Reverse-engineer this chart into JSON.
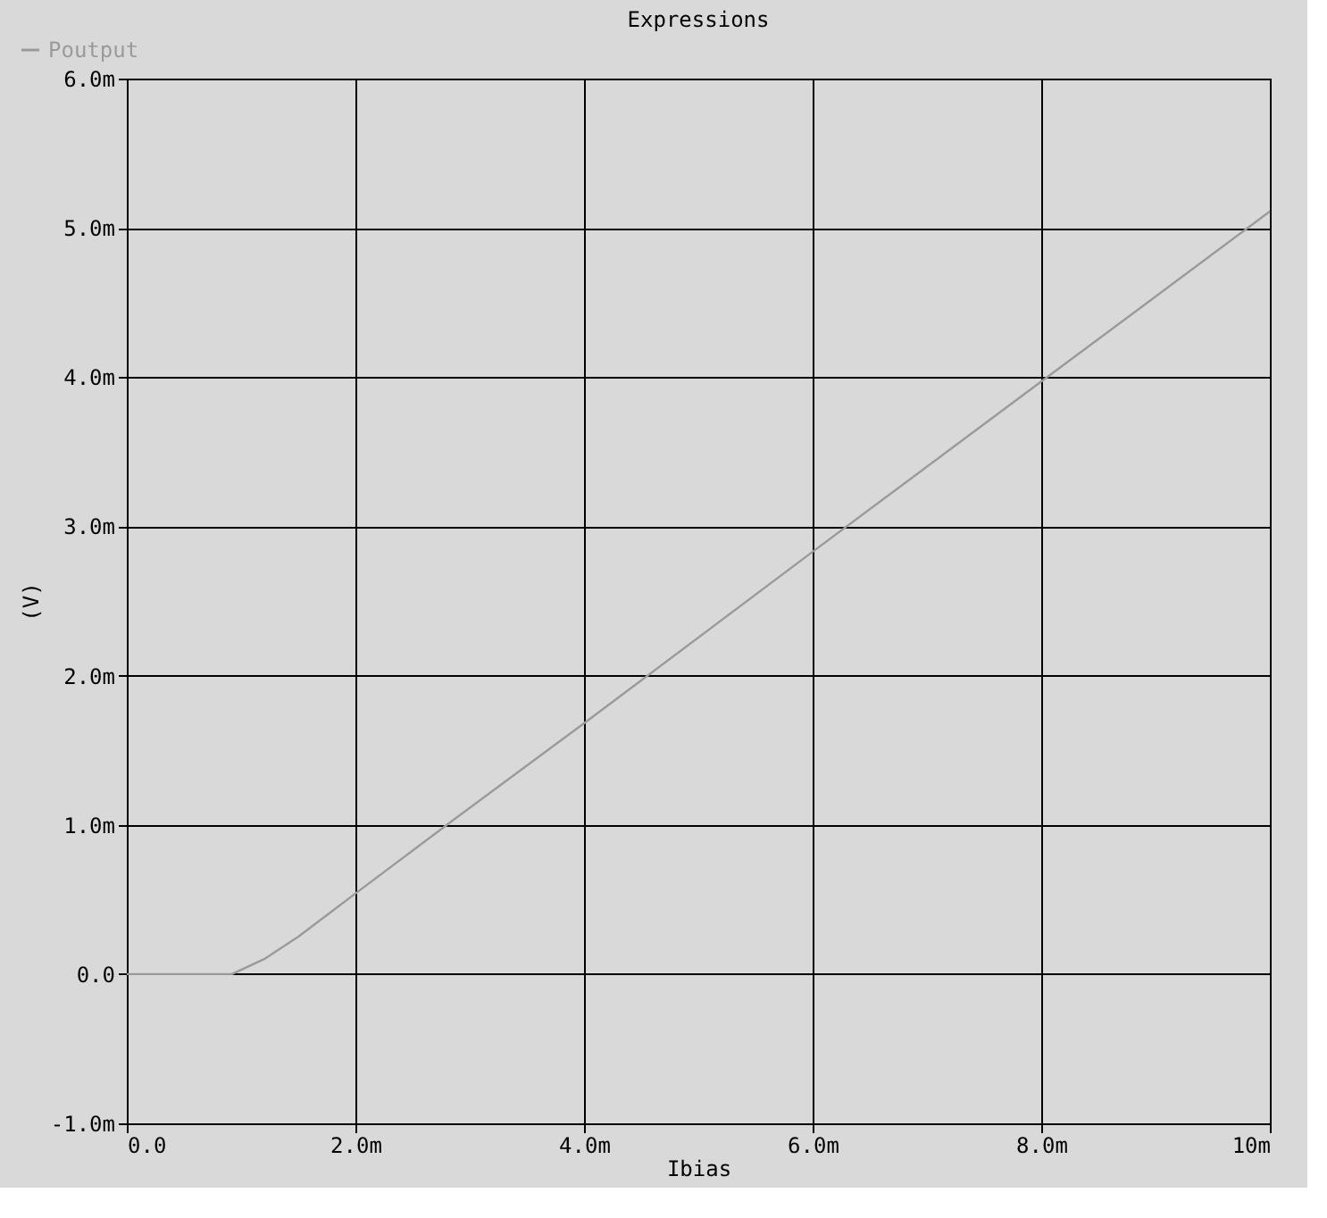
{
  "chart_data": {
    "type": "line",
    "title": "Expressions",
    "xlabel": "Ibias",
    "ylabel": "(V)",
    "x": [
      0,
      0.5,
      0.92,
      1.2,
      1.5,
      2.0,
      2.8,
      4.0,
      6.0,
      8.0,
      10.0
    ],
    "series": [
      {
        "name": "Poutput",
        "color": "#9a9a9a",
        "values": [
          0,
          0,
          0,
          0.1,
          0.25,
          0.54,
          1.0,
          1.68,
          2.83,
          3.97,
          5.11
        ]
      }
    ],
    "xlim": [
      0,
      10
    ],
    "ylim": [
      -1,
      6
    ],
    "xticks": [
      {
        "value": 0,
        "label": "0.0"
      },
      {
        "value": 2,
        "label": "2.0m"
      },
      {
        "value": 4,
        "label": "4.0m"
      },
      {
        "value": 6,
        "label": "6.0m"
      },
      {
        "value": 8,
        "label": "8.0m"
      },
      {
        "value": 10,
        "label": "10m"
      }
    ],
    "yticks": [
      {
        "value": -1,
        "label": "-1.0m"
      },
      {
        "value": 0,
        "label": "0.0"
      },
      {
        "value": 1,
        "label": "1.0m"
      },
      {
        "value": 2,
        "label": "2.0m"
      },
      {
        "value": 3,
        "label": "3.0m"
      },
      {
        "value": 4,
        "label": "4.0m"
      },
      {
        "value": 5,
        "label": "5.0m"
      },
      {
        "value": 6,
        "label": "6.0m"
      }
    ],
    "grid": true,
    "legend": "top left",
    "line_style": "solid"
  }
}
